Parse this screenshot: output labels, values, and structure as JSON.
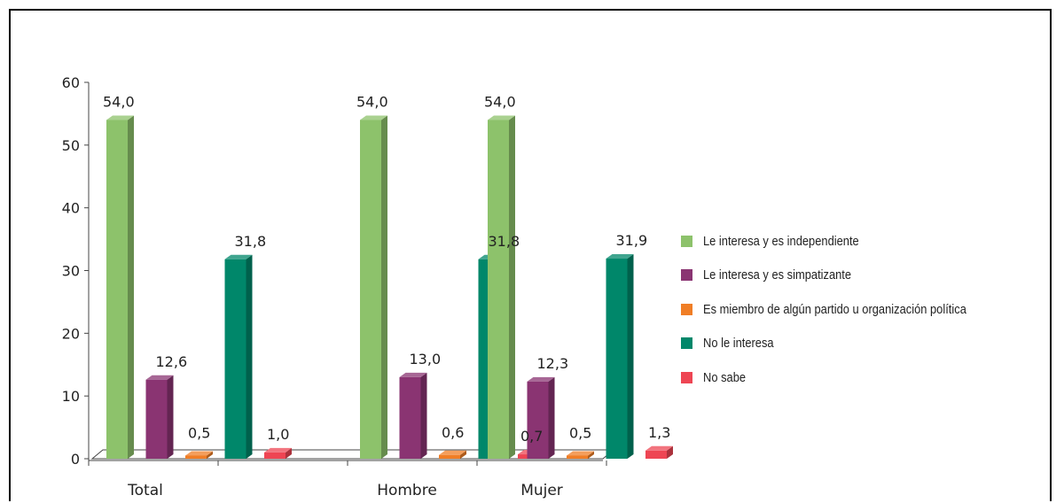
{
  "chart_data": {
    "type": "bar",
    "categories": [
      "Total",
      "Hombre",
      "Mujer"
    ],
    "series": [
      {
        "name": "Le interesa y es independiente",
        "color": "#8DC26B",
        "values": [
          54.0,
          54.0,
          54.0
        ],
        "labels": [
          "54,0",
          "54,0",
          "54,0"
        ]
      },
      {
        "name": "Le interesa y es simpatizante",
        "color": "#8A3472",
        "values": [
          12.6,
          13.0,
          12.3
        ],
        "labels": [
          "12,6",
          "13,0",
          "12,3"
        ]
      },
      {
        "name": "Es miembro de algún partido u organización política",
        "color": "#F07E26",
        "values": [
          0.5,
          0.6,
          0.5
        ],
        "labels": [
          "0,5",
          "0,6",
          "0,5"
        ]
      },
      {
        "name": "No le interesa",
        "color": "#00876A",
        "values": [
          31.8,
          31.8,
          31.9
        ],
        "labels": [
          "31,8",
          "31,8",
          "31,9"
        ]
      },
      {
        "name": "No sabe",
        "color": "#EE4553",
        "values": [
          1.0,
          0.7,
          1.3
        ],
        "labels": [
          "1,0",
          "0,7",
          "1,3"
        ]
      }
    ],
    "ylim": [
      0,
      60
    ],
    "yticks": [
      "0",
      "10",
      "20",
      "30",
      "40",
      "50",
      "60"
    ],
    "xlabel": "",
    "ylabel": "",
    "title": "",
    "grid": false,
    "legend_position": "right",
    "style": "3d-column"
  }
}
